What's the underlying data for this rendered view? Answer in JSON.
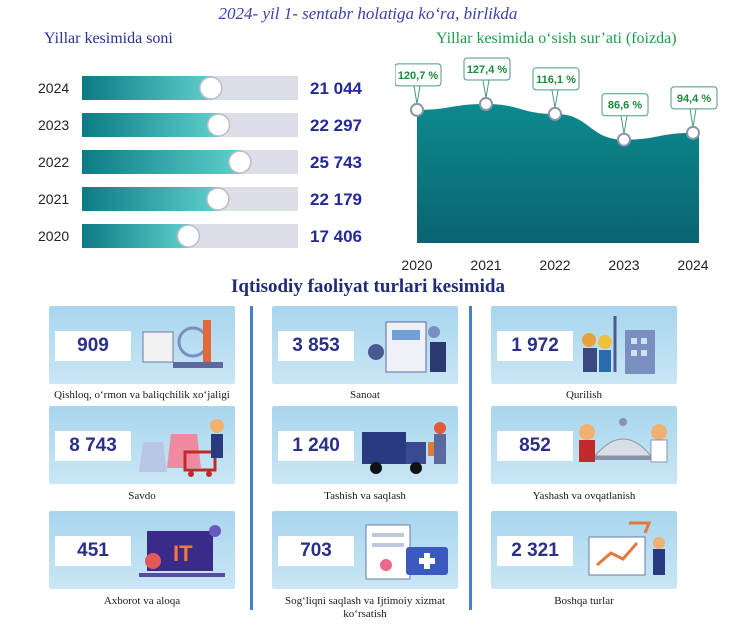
{
  "subtitle": "2024- yil 1- sentabr holatiga ko‘ra, birlikda",
  "left_heading": "Yillar kesimida soni",
  "right_heading": "Yillar kesimida o‘sish sur’ati (foizda)",
  "sector_heading": "Iqtisodiy faoliyat turlari kesimida",
  "colors": {
    "teal_dark": "#0b7b85",
    "teal_light": "#5fd0cc",
    "navy": "#24299a",
    "green": "#1a9e4b"
  },
  "chart_data": [
    {
      "type": "bar",
      "orientation": "horizontal",
      "categories": [
        "2024",
        "2023",
        "2022",
        "2021",
        "2020"
      ],
      "values": [
        21044,
        22297,
        25743,
        22179,
        17406
      ],
      "value_labels": [
        "21 044",
        "22 297",
        "25 743",
        "22 179",
        "17 406"
      ],
      "title": "Yillar kesimida soni",
      "xlim": [
        0,
        35000
      ]
    },
    {
      "type": "area",
      "x": [
        "2020",
        "2021",
        "2022",
        "2023",
        "2024"
      ],
      "values": [
        120.7,
        127.4,
        116.1,
        86.6,
        94.4
      ],
      "value_labels": [
        "120,7 %",
        "127,4 %",
        "116,1 %",
        "86,6 %",
        "94,4 %"
      ],
      "title": "Yillar kesimida o‘sish sur’ati (foizda)",
      "ylim": [
        0,
        140
      ]
    }
  ],
  "sectors": [
    {
      "value": "909",
      "label": "Qishloq, o‘rmon va baliqchilik xo‘jaligi",
      "icon": "farm-illustration"
    },
    {
      "value": "3 853",
      "label": "Sanoat",
      "icon": "factory-illustration"
    },
    {
      "value": "1 972",
      "label": "Qurilish",
      "icon": "construction-illustration"
    },
    {
      "value": "8 743",
      "label": "Savdo",
      "icon": "shopping-illustration"
    },
    {
      "value": "1 240",
      "label": "Tashish va saqlash",
      "icon": "delivery-truck-illustration"
    },
    {
      "value": "852",
      "label": "Yashash va ovqatlanish",
      "icon": "food-service-illustration"
    },
    {
      "value": "451",
      "label": "Axborot va aloqa",
      "icon": "it-illustration"
    },
    {
      "value": "703",
      "label": "Sog‘liqni saqlash va Ijtimoiy xizmat ko‘rsatish",
      "icon": "health-illustration"
    },
    {
      "value": "2 321",
      "label": "Boshqa turlar",
      "icon": "analytics-illustration"
    }
  ]
}
